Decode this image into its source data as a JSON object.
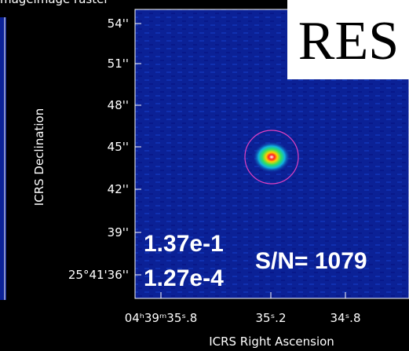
{
  "header": {
    "title": "mageimage raster"
  },
  "y_axis": {
    "label": "ICRS Declination",
    "ticks": [
      "54''",
      "51''",
      "48''",
      "45''",
      "42''",
      "39''",
      "25°41'36''"
    ]
  },
  "x_axis": {
    "label": "ICRS Right Ascension",
    "ticks": [
      "04ʰ39ᵐ35ˢ.8",
      "35ˢ.2",
      "34ˢ.8"
    ]
  },
  "annotations": {
    "badge": "RES",
    "peak": "1.37e-1",
    "rms": "1.27e-4",
    "snr": "S/N= 1079"
  }
}
